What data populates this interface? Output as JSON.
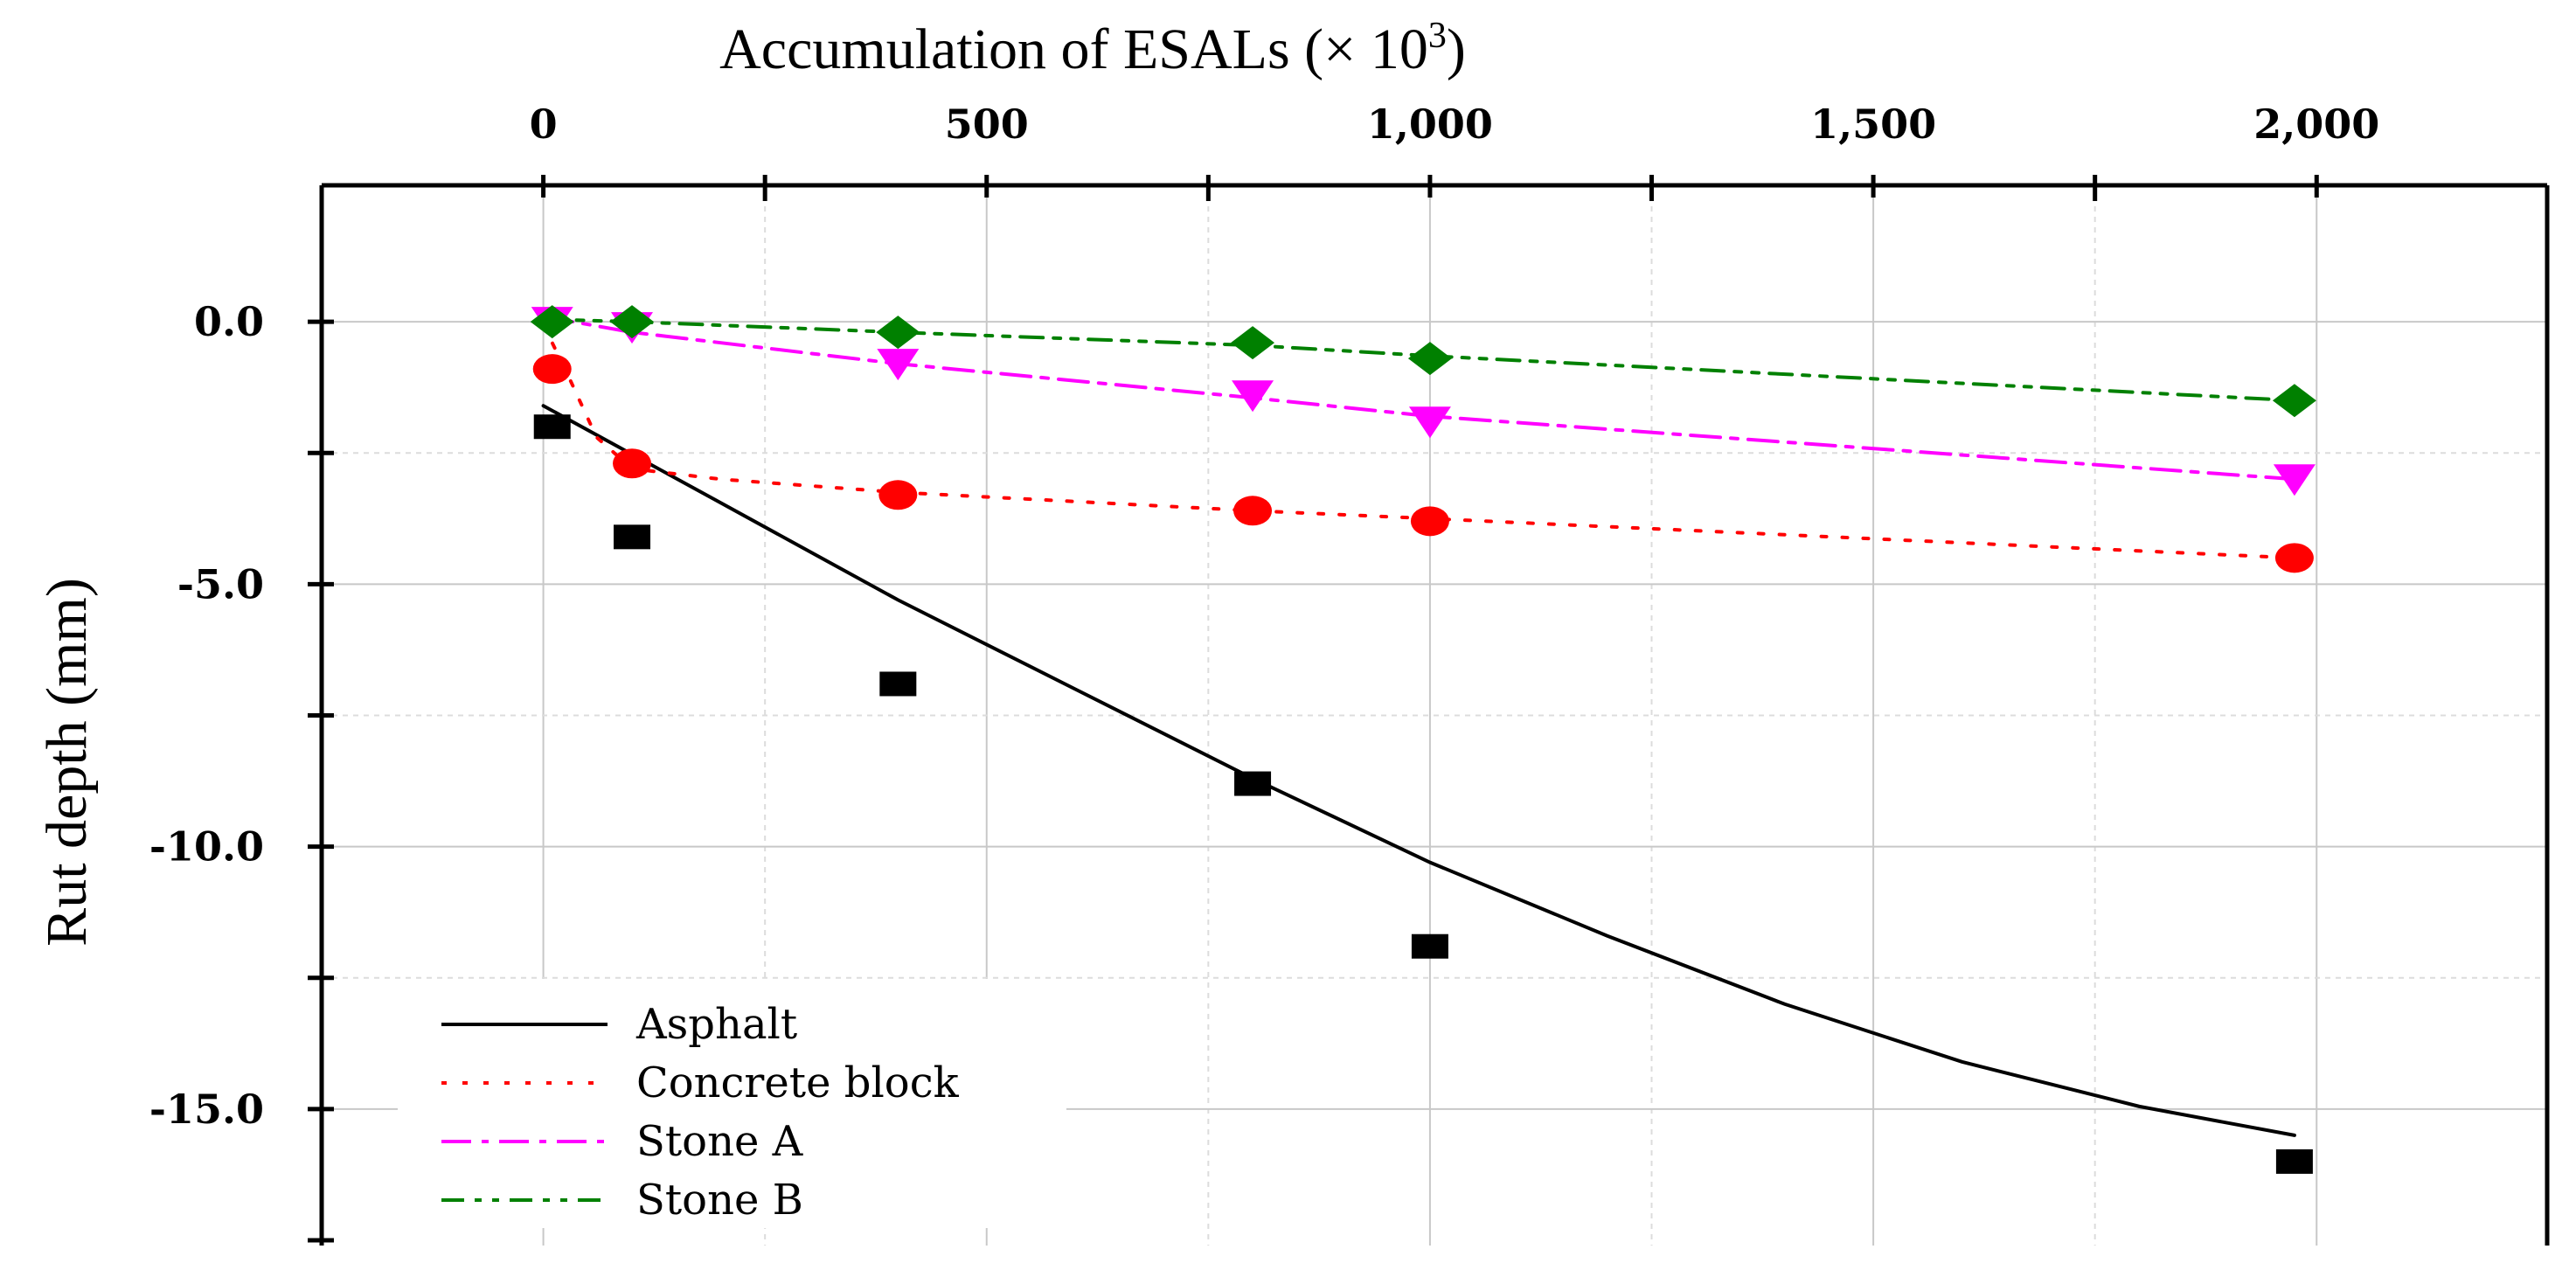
{
  "chart_data": {
    "type": "scatter",
    "title": "Accumulation of ESALs (× 10",
    "title_superscript": "3",
    "title_close": ")",
    "xlabel": "Accumulation of ESALs (× 10³)",
    "ylabel": "Rut depth (mm)",
    "xlim": [
      -250,
      2260
    ],
    "ylim": [
      -17.6,
      2.6
    ],
    "x_ticks": [
      0,
      500,
      1000,
      1500,
      2000
    ],
    "x_tick_labels": [
      "0",
      "500",
      "1,000",
      "1,500",
      "2,000"
    ],
    "y_ticks": [
      0,
      -5,
      -10,
      -15
    ],
    "y_tick_labels": [
      "0.0",
      "-5.0",
      "-10.0",
      "-15.0"
    ],
    "grid": true,
    "legend_position": "bottom-left",
    "series": [
      {
        "name": "Asphalt",
        "color": "#000000",
        "marker": "square",
        "line_style": "solid",
        "points": [
          {
            "x": 10,
            "y": -2.0
          },
          {
            "x": 100,
            "y": -4.1
          },
          {
            "x": 400,
            "y": -6.9
          },
          {
            "x": 800,
            "y": -8.8
          },
          {
            "x": 1000,
            "y": -11.9
          },
          {
            "x": 1975,
            "y": -16.0
          }
        ],
        "fit": [
          {
            "x": 0,
            "y": -1.6
          },
          {
            "x": 200,
            "y": -3.45
          },
          {
            "x": 400,
            "y": -5.3
          },
          {
            "x": 600,
            "y": -7.0
          },
          {
            "x": 800,
            "y": -8.7
          },
          {
            "x": 1000,
            "y": -10.3
          },
          {
            "x": 1200,
            "y": -11.7
          },
          {
            "x": 1400,
            "y": -13.0
          },
          {
            "x": 1600,
            "y": -14.1
          },
          {
            "x": 1800,
            "y": -14.95
          },
          {
            "x": 1975,
            "y": -15.5
          }
        ]
      },
      {
        "name": "Concrete block",
        "color": "#ff0000",
        "marker": "circle",
        "line_style": "dotted",
        "points": [
          {
            "x": 10,
            "y": -0.9
          },
          {
            "x": 100,
            "y": -2.7
          },
          {
            "x": 400,
            "y": -3.3
          },
          {
            "x": 800,
            "y": -3.6
          },
          {
            "x": 1000,
            "y": -3.8
          },
          {
            "x": 1975,
            "y": -4.5
          }
        ],
        "fit": [
          {
            "x": 0,
            "y": -0.05
          },
          {
            "x": 30,
            "y": -1.1
          },
          {
            "x": 60,
            "y": -2.2
          },
          {
            "x": 100,
            "y": -2.8
          },
          {
            "x": 200,
            "y": -3.0
          },
          {
            "x": 400,
            "y": -3.25
          },
          {
            "x": 800,
            "y": -3.6
          },
          {
            "x": 1000,
            "y": -3.75
          },
          {
            "x": 1975,
            "y": -4.5
          }
        ]
      },
      {
        "name": "Stone A",
        "color": "#ff00ff",
        "marker": "triangle-down",
        "line_style": "dash-dot",
        "points": [
          {
            "x": 10,
            "y": 0.0
          },
          {
            "x": 100,
            "y": -0.1
          },
          {
            "x": 400,
            "y": -0.8
          },
          {
            "x": 800,
            "y": -1.4
          },
          {
            "x": 1000,
            "y": -1.9
          },
          {
            "x": 1975,
            "y": -3.0
          }
        ],
        "fit": [
          {
            "x": 0,
            "y": 0.1
          },
          {
            "x": 100,
            "y": -0.2
          },
          {
            "x": 400,
            "y": -0.8
          },
          {
            "x": 800,
            "y": -1.45
          },
          {
            "x": 1000,
            "y": -1.8
          },
          {
            "x": 1975,
            "y": -3.0
          }
        ]
      },
      {
        "name": "Stone B",
        "color": "#008000",
        "marker": "diamond",
        "line_style": "dash-dot-dot",
        "points": [
          {
            "x": 10,
            "y": 0.0
          },
          {
            "x": 100,
            "y": 0.0
          },
          {
            "x": 400,
            "y": -0.2
          },
          {
            "x": 800,
            "y": -0.4
          },
          {
            "x": 1000,
            "y": -0.7
          },
          {
            "x": 1975,
            "y": -1.5
          }
        ],
        "fit": [
          {
            "x": 0,
            "y": 0.05
          },
          {
            "x": 100,
            "y": 0.0
          },
          {
            "x": 400,
            "y": -0.2
          },
          {
            "x": 800,
            "y": -0.45
          },
          {
            "x": 1000,
            "y": -0.65
          },
          {
            "x": 1975,
            "y": -1.5
          }
        ]
      }
    ]
  }
}
